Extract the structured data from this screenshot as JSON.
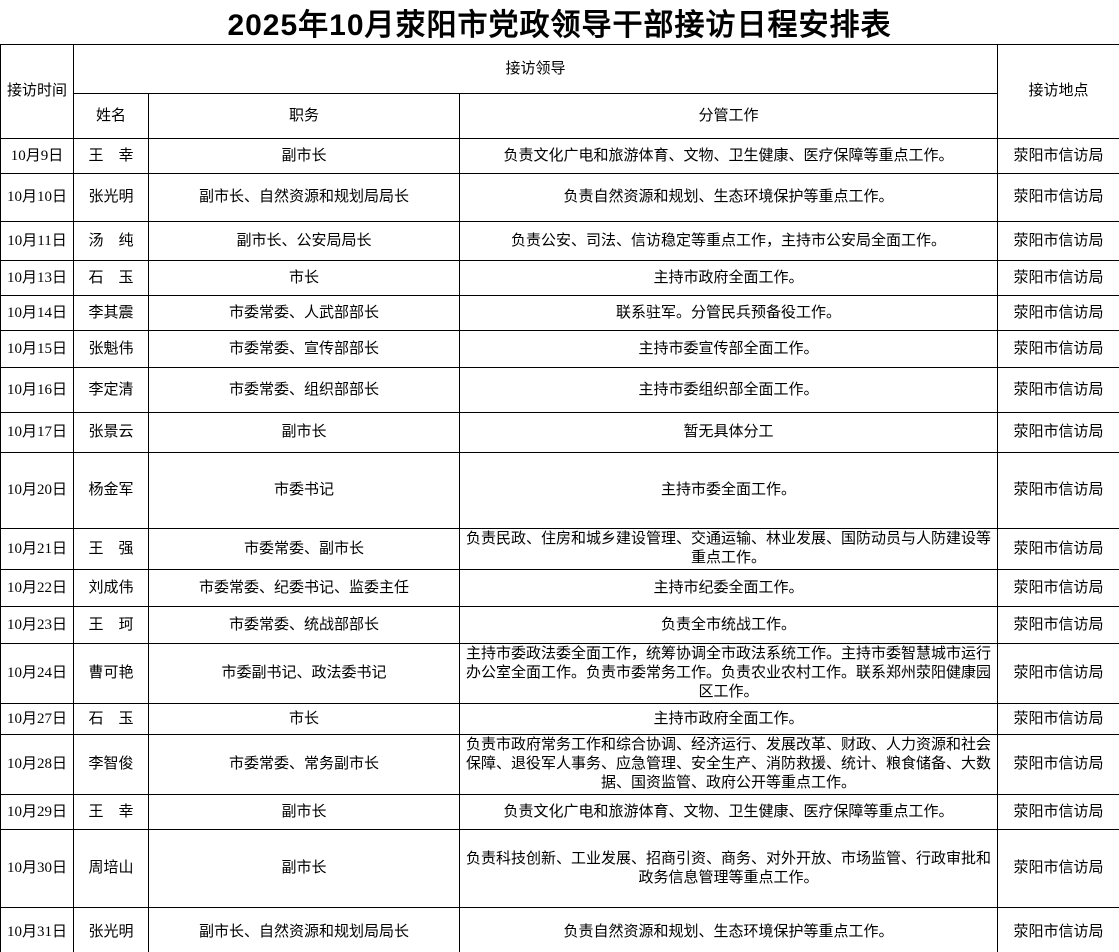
{
  "title": "2025年10月荥阳市党政领导干部接访日程安排表",
  "table": {
    "headers": {
      "time": "接访时间",
      "leader_group": "接访领导",
      "name": "姓名",
      "position": "职务",
      "duties": "分管工作",
      "location": "接访地点"
    },
    "rows": [
      {
        "date": "10月9日",
        "name": "王　幸",
        "position": "副市长",
        "duties": "负责文化广电和旅游体育、文物、卫生健康、医疗保障等重点工作。",
        "location": "荥阳市信访局"
      },
      {
        "date": "10月10日",
        "name": "张光明",
        "position": "副市长、自然资源和规划局局长",
        "duties": "负责自然资源和规划、生态环境保护等重点工作。",
        "location": "荥阳市信访局"
      },
      {
        "date": "10月11日",
        "name": "汤　纯",
        "position": "副市长、公安局局长",
        "duties": "负责公安、司法、信访稳定等重点工作，主持市公安局全面工作。",
        "location": "荥阳市信访局"
      },
      {
        "date": "10月13日",
        "name": "石　玉",
        "position": "市长",
        "duties": "主持市政府全面工作。",
        "location": "荥阳市信访局"
      },
      {
        "date": "10月14日",
        "name": "李其震",
        "position": "市委常委、人武部部长",
        "duties": "联系驻军。分管民兵预备役工作。",
        "location": "荥阳市信访局"
      },
      {
        "date": "10月15日",
        "name": "张魁伟",
        "position": "市委常委、宣传部部长",
        "duties": "主持市委宣传部全面工作。",
        "location": "荥阳市信访局"
      },
      {
        "date": "10月16日",
        "name": "李定清",
        "position": "市委常委、组织部部长",
        "duties": "主持市委组织部全面工作。",
        "location": "荥阳市信访局"
      },
      {
        "date": "10月17日",
        "name": "张景云",
        "position": "副市长",
        "duties": "暂无具体分工",
        "location": "荥阳市信访局"
      },
      {
        "date": "10月20日",
        "name": "杨金军",
        "position": "市委书记",
        "duties": "主持市委全面工作。",
        "location": "荥阳市信访局"
      },
      {
        "date": "10月21日",
        "name": "王　强",
        "position": "市委常委、副市长",
        "duties": "负责民政、住房和城乡建设管理、交通运输、林业发展、国防动员与人防建设等重点工作。",
        "location": "荥阳市信访局"
      },
      {
        "date": "10月22日",
        "name": "刘成伟",
        "position": "市委常委、纪委书记、监委主任",
        "duties": "主持市纪委全面工作。",
        "location": "荥阳市信访局"
      },
      {
        "date": "10月23日",
        "name": "王　珂",
        "position": "市委常委、统战部部长",
        "duties": "负责全市统战工作。",
        "location": "荥阳市信访局"
      },
      {
        "date": "10月24日",
        "name": "曹可艳",
        "position": "市委副书记、政法委书记",
        "duties": "主持市委政法委全面工作，统筹协调全市政法系统工作。主持市委智慧城市运行办公室全面工作。负责市委常务工作。负责农业农村工作。联系郑州荥阳健康园区工作。",
        "location": "荥阳市信访局"
      },
      {
        "date": "10月27日",
        "name": "石　玉",
        "position": "市长",
        "duties": "主持市政府全面工作。",
        "location": "荥阳市信访局"
      },
      {
        "date": "10月28日",
        "name": "李智俊",
        "position": "市委常委、常务副市长",
        "duties": "负责市政府常务工作和综合协调、经济运行、发展改革、财政、人力资源和社会保障、退役军人事务、应急管理、安全生产、消防救援、统计、粮食储备、大数据、国资监管、政府公开等重点工作。",
        "location": "荥阳市信访局"
      },
      {
        "date": "10月29日",
        "name": "王　幸",
        "position": "副市长",
        "duties": "负责文化广电和旅游体育、文物、卫生健康、医疗保障等重点工作。",
        "location": "荥阳市信访局"
      },
      {
        "date": "10月30日",
        "name": "周培山",
        "position": "副市长",
        "duties": "负责科技创新、工业发展、招商引资、商务、对外开放、市场监管、行政审批和政务信息管理等重点工作。",
        "location": "荥阳市信访局"
      },
      {
        "date": "10月31日",
        "name": "张光明",
        "position": "副市长、自然资源和规划局局长",
        "duties": "负责自然资源和规划、生态环境保护等重点工作。",
        "location": "荥阳市信访局"
      }
    ]
  },
  "colors": {
    "border": "#000000",
    "background": "#ffffff",
    "text": "#000000"
  }
}
